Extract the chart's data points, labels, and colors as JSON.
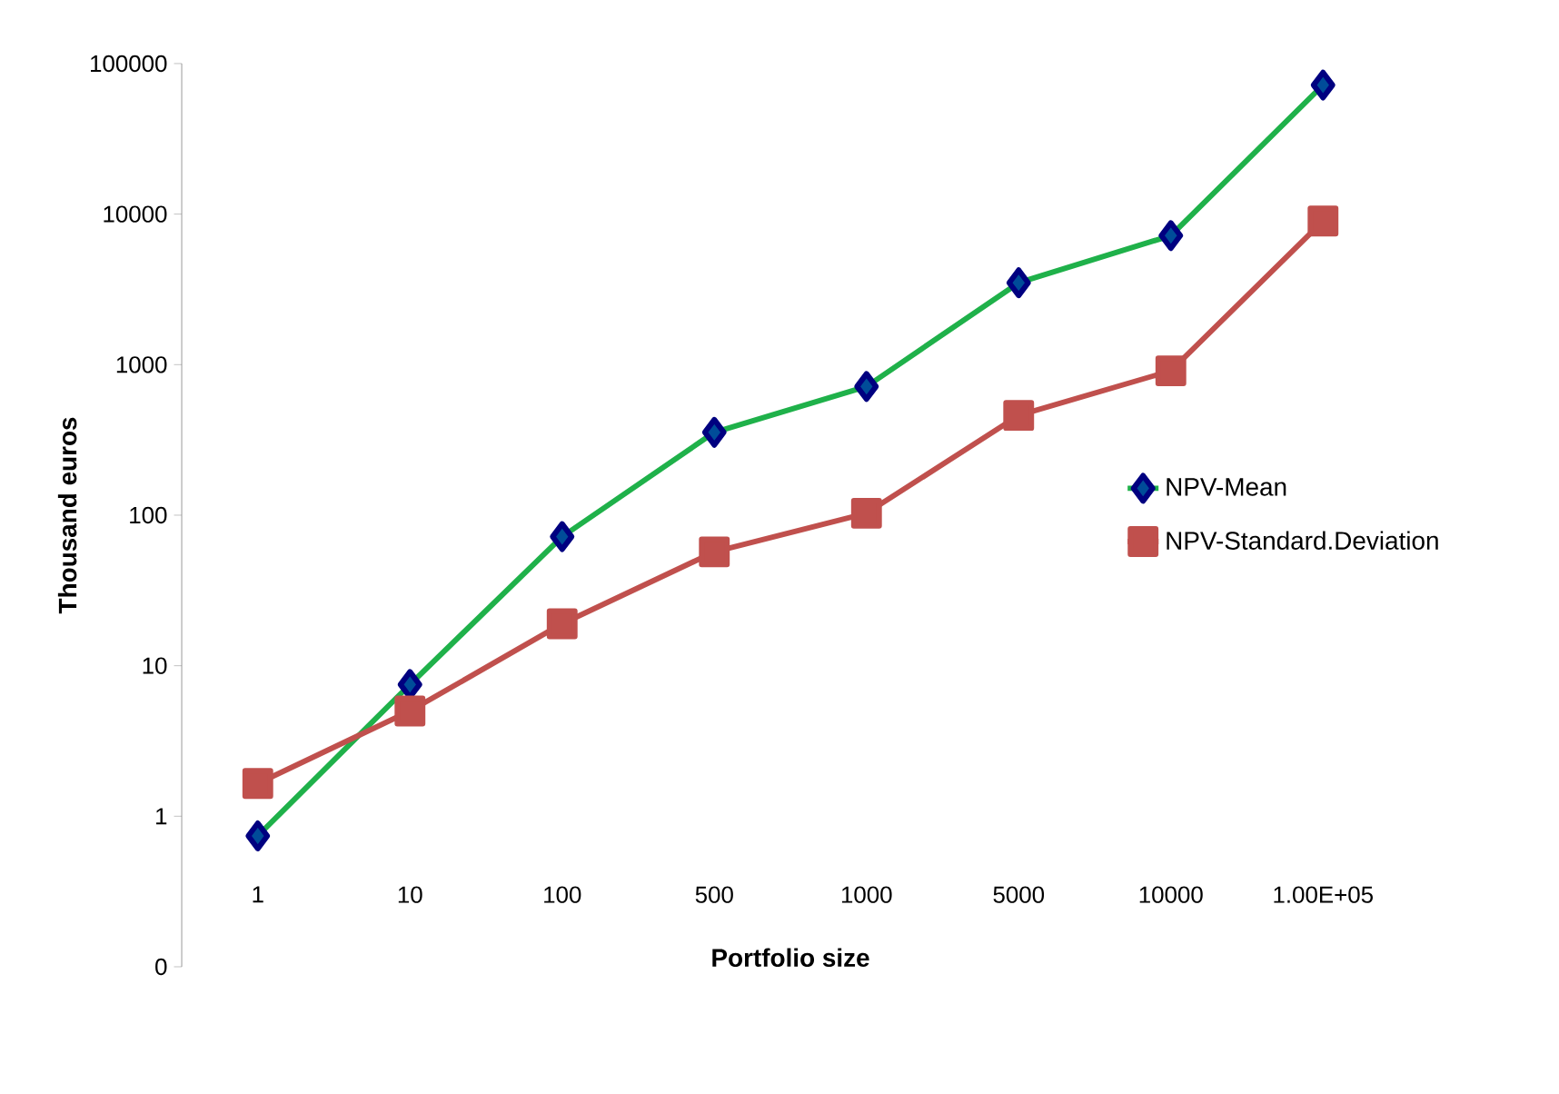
{
  "chart_data": {
    "type": "line",
    "xlabel": "Portfolio size",
    "ylabel": "Thousand euros",
    "categories": [
      "1",
      "10",
      "100",
      "500",
      "1000",
      "5000",
      "10000",
      "1.00E+05"
    ],
    "series": [
      {
        "name": "NPV-Mean",
        "color": "#1fb14a",
        "marker": "diamond",
        "values": [
          0.74,
          7.5,
          72,
          355,
          716,
          3500,
          7200,
          72000
        ]
      },
      {
        "name": "NPV-Standard.Deviation",
        "color": "#c0504d",
        "marker": "square",
        "values": [
          1.65,
          5.0,
          19,
          57,
          103,
          460,
          910,
          9000
        ]
      }
    ],
    "log": "y",
    "ylim": [
      0.1,
      100000
    ],
    "yticks": [
      {
        "value": 0.1,
        "label": "0"
      },
      1,
      10,
      100,
      1000,
      10000,
      100000
    ],
    "grid": false,
    "legend": "right"
  }
}
